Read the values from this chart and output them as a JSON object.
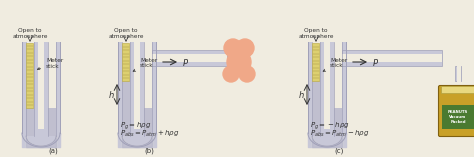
{
  "bg_color": "#f0ece0",
  "tube_color": "#c8c8d8",
  "tube_edge": "#a0a0b8",
  "liquid_color": "#b8b8cc",
  "stick_color": "#ddd070",
  "stick_edge": "#b8a840",
  "stick_tick": "#a09040",
  "text_color": "#333333",
  "bulb_color": "#f0a888",
  "jar_body": "#c8a028",
  "jar_label": "#4a7a30",
  "eq_b1": "$P_g = h\\rho g$",
  "eq_b2": "$P_{abs} = P_{atm} + h\\rho g$",
  "eq_c1": "$P_g = -h\\rho g$",
  "eq_c2": "$P_{abs} = P_{atm} - h\\rho g$",
  "label_P": "$\\leftarrow P$",
  "label_h": "$h$",
  "open_atm": "Open to\natmosphere",
  "meter_stick": "Meter\nstick"
}
